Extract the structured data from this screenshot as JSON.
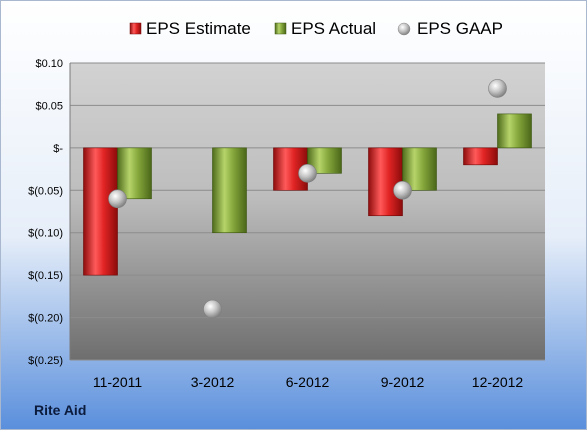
{
  "chart_data": {
    "type": "bar",
    "categories": [
      "11-2011",
      "3-2012",
      "6-2012",
      "9-2012",
      "12-2012"
    ],
    "series": [
      {
        "name": "EPS Estimate",
        "kind": "bar",
        "values": [
          -0.15,
          null,
          -0.05,
          -0.08,
          -0.02
        ]
      },
      {
        "name": "EPS Actual",
        "kind": "bar",
        "values": [
          -0.06,
          -0.1,
          -0.03,
          -0.05,
          0.04
        ]
      },
      {
        "name": "EPS GAAP",
        "kind": "marker",
        "values": [
          -0.06,
          -0.19,
          -0.03,
          -0.05,
          0.07
        ]
      }
    ],
    "y_ticks": [
      {
        "value": 0.1,
        "label": "$0.10"
      },
      {
        "value": 0.05,
        "label": "$0.05"
      },
      {
        "value": 0.0,
        "label": "$-"
      },
      {
        "value": -0.05,
        "label": "$(0.05)"
      },
      {
        "value": -0.1,
        "label": "$(0.10)"
      },
      {
        "value": -0.15,
        "label": "$(0.15)"
      },
      {
        "value": -0.2,
        "label": "$(0.20)"
      },
      {
        "value": -0.25,
        "label": "$(0.25)"
      }
    ],
    "ylim": [
      -0.25,
      0.1
    ],
    "grid": true,
    "legend_position": "top"
  },
  "company_label": "Rite Aid",
  "colors": {
    "estimate": "#d42222",
    "actual": "#7fa33a",
    "gaap": "#b8b8b8",
    "background_top": "#ffffff",
    "background_bottom": "#4a84d8"
  }
}
